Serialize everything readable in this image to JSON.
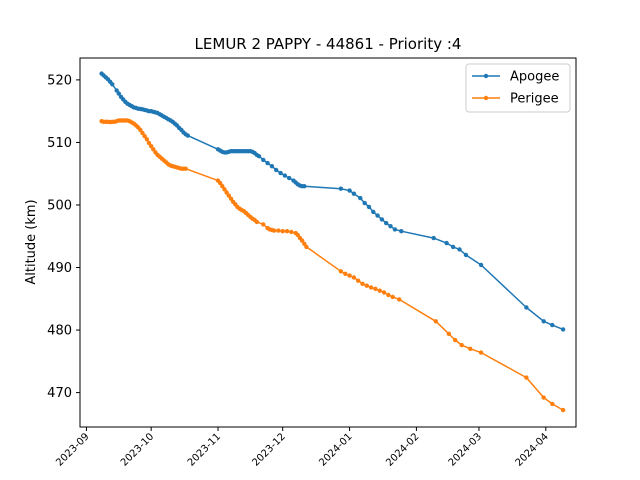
{
  "chart_data": {
    "type": "line",
    "title": "LEMUR 2 PAPPY - 44861 - Priority :4",
    "xlabel": "",
    "ylabel": "Altitude (km)",
    "x_tick_labels": [
      "2023-09",
      "2023-10",
      "2023-11",
      "2023-12",
      "2024-01",
      "2024-02",
      "2024-03",
      "2024-04"
    ],
    "x_ticks": [
      "2023-09-01",
      "2023-10-01",
      "2023-11-01",
      "2023-12-01",
      "2024-01-01",
      "2024-02-01",
      "2024-03-01",
      "2024-04-01"
    ],
    "xlim": [
      "2023-08-29",
      "2024-04-15"
    ],
    "y_ticks": [
      470,
      480,
      490,
      500,
      510,
      520
    ],
    "ylim": [
      464.5,
      523.5
    ],
    "grid": false,
    "legend_position": "top-right",
    "series": [
      {
        "name": "Apogee",
        "color": "#1f77b4",
        "points": [
          [
            "2023-09-08",
            521.0
          ],
          [
            "2023-09-09",
            520.7
          ],
          [
            "2023-09-10",
            520.4
          ],
          [
            "2023-09-11",
            520.1
          ],
          [
            "2023-09-12",
            519.7
          ],
          [
            "2023-09-13",
            519.3
          ],
          [
            "2023-09-15",
            518.3
          ],
          [
            "2023-09-16",
            517.8
          ],
          [
            "2023-09-17",
            517.3
          ],
          [
            "2023-09-18",
            516.9
          ],
          [
            "2023-09-19",
            516.5
          ],
          [
            "2023-09-20",
            516.2
          ],
          [
            "2023-09-21",
            516.0
          ],
          [
            "2023-09-22",
            515.8
          ],
          [
            "2023-09-23",
            515.6
          ],
          [
            "2023-09-24",
            515.5
          ],
          [
            "2023-09-25",
            515.4
          ],
          [
            "2023-09-26",
            515.35
          ],
          [
            "2023-09-27",
            515.3
          ],
          [
            "2023-09-28",
            515.2
          ],
          [
            "2023-09-29",
            515.1
          ],
          [
            "2023-09-30",
            515.0
          ],
          [
            "2023-10-01",
            515.0
          ],
          [
            "2023-10-02",
            514.9
          ],
          [
            "2023-10-03",
            514.8
          ],
          [
            "2023-10-04",
            514.7
          ],
          [
            "2023-10-05",
            514.5
          ],
          [
            "2023-10-06",
            514.3
          ],
          [
            "2023-10-07",
            514.1
          ],
          [
            "2023-10-08",
            513.9
          ],
          [
            "2023-10-09",
            513.7
          ],
          [
            "2023-10-10",
            513.5
          ],
          [
            "2023-10-11",
            513.3
          ],
          [
            "2023-10-12",
            513.0
          ],
          [
            "2023-10-13",
            512.7
          ],
          [
            "2023-10-14",
            512.3
          ],
          [
            "2023-10-15",
            512.0
          ],
          [
            "2023-10-16",
            511.6
          ],
          [
            "2023-10-17",
            511.3
          ],
          [
            "2023-10-18",
            511.1
          ],
          [
            "2023-11-01",
            508.9
          ],
          [
            "2023-11-02",
            508.7
          ],
          [
            "2023-11-03",
            508.5
          ],
          [
            "2023-11-04",
            508.4
          ],
          [
            "2023-11-05",
            508.4
          ],
          [
            "2023-11-06",
            508.5
          ],
          [
            "2023-11-07",
            508.6
          ],
          [
            "2023-11-08",
            508.6
          ],
          [
            "2023-11-09",
            508.6
          ],
          [
            "2023-11-10",
            508.6
          ],
          [
            "2023-11-11",
            508.6
          ],
          [
            "2023-11-12",
            508.6
          ],
          [
            "2023-11-13",
            508.6
          ],
          [
            "2023-11-14",
            508.6
          ],
          [
            "2023-11-15",
            508.6
          ],
          [
            "2023-11-16",
            508.6
          ],
          [
            "2023-11-17",
            508.5
          ],
          [
            "2023-11-18",
            508.3
          ],
          [
            "2023-11-19",
            508.0
          ],
          [
            "2023-11-20",
            507.8
          ],
          [
            "2023-11-22",
            507.2
          ],
          [
            "2023-11-24",
            506.7
          ],
          [
            "2023-11-26",
            506.2
          ],
          [
            "2023-11-28",
            505.6
          ],
          [
            "2023-11-30",
            505.1
          ],
          [
            "2023-12-02",
            504.7
          ],
          [
            "2023-12-04",
            504.3
          ],
          [
            "2023-12-06",
            503.9
          ],
          [
            "2023-12-07",
            503.6
          ],
          [
            "2023-12-08",
            503.3
          ],
          [
            "2023-12-09",
            503.1
          ],
          [
            "2023-12-10",
            503.0
          ],
          [
            "2023-12-11",
            503.0
          ],
          [
            "2023-12-28",
            502.6
          ],
          [
            "2024-01-01",
            502.3
          ],
          [
            "2024-01-03",
            501.8
          ],
          [
            "2024-01-06",
            501.1
          ],
          [
            "2024-01-08",
            500.3
          ],
          [
            "2024-01-10",
            499.7
          ],
          [
            "2024-01-12",
            498.9
          ],
          [
            "2024-01-14",
            498.3
          ],
          [
            "2024-01-16",
            497.7
          ],
          [
            "2024-01-18",
            497.1
          ],
          [
            "2024-01-20",
            496.6
          ],
          [
            "2024-01-22",
            496.1
          ],
          [
            "2024-01-25",
            495.8
          ],
          [
            "2024-02-09",
            494.7
          ],
          [
            "2024-02-15",
            493.9
          ],
          [
            "2024-02-18",
            493.3
          ],
          [
            "2024-02-21",
            492.9
          ],
          [
            "2024-02-24",
            492.0
          ],
          [
            "2024-03-02",
            490.4
          ],
          [
            "2024-03-23",
            483.6
          ],
          [
            "2024-03-31",
            481.4
          ],
          [
            "2024-04-04",
            480.8
          ],
          [
            "2024-04-09",
            480.1
          ]
        ]
      },
      {
        "name": "Perigee",
        "color": "#ff7f0e",
        "points": [
          [
            "2023-09-08",
            513.4
          ],
          [
            "2023-09-09",
            513.3
          ],
          [
            "2023-09-10",
            513.3
          ],
          [
            "2023-09-11",
            513.3
          ],
          [
            "2023-09-12",
            513.25
          ],
          [
            "2023-09-13",
            513.3
          ],
          [
            "2023-09-14",
            513.3
          ],
          [
            "2023-09-15",
            513.4
          ],
          [
            "2023-09-16",
            513.5
          ],
          [
            "2023-09-17",
            513.5
          ],
          [
            "2023-09-18",
            513.5
          ],
          [
            "2023-09-19",
            513.5
          ],
          [
            "2023-09-20",
            513.5
          ],
          [
            "2023-09-21",
            513.4
          ],
          [
            "2023-09-22",
            513.2
          ],
          [
            "2023-09-23",
            513.0
          ],
          [
            "2023-09-24",
            512.7
          ],
          [
            "2023-09-25",
            512.4
          ],
          [
            "2023-09-26",
            512.0
          ],
          [
            "2023-09-27",
            511.5
          ],
          [
            "2023-09-28",
            511.0
          ],
          [
            "2023-09-29",
            510.5
          ],
          [
            "2023-09-30",
            509.9
          ],
          [
            "2023-10-01",
            509.4
          ],
          [
            "2023-10-02",
            508.9
          ],
          [
            "2023-10-03",
            508.4
          ],
          [
            "2023-10-04",
            508.0
          ],
          [
            "2023-10-05",
            507.7
          ],
          [
            "2023-10-06",
            507.4
          ],
          [
            "2023-10-07",
            507.1
          ],
          [
            "2023-10-08",
            506.8
          ],
          [
            "2023-10-09",
            506.5
          ],
          [
            "2023-10-10",
            506.3
          ],
          [
            "2023-10-11",
            506.2
          ],
          [
            "2023-10-12",
            506.1
          ],
          [
            "2023-10-13",
            506.0
          ],
          [
            "2023-10-14",
            505.9
          ],
          [
            "2023-10-15",
            505.8
          ],
          [
            "2023-10-16",
            505.8
          ],
          [
            "2023-10-17",
            505.8
          ],
          [
            "2023-11-01",
            503.9
          ],
          [
            "2023-11-02",
            503.5
          ],
          [
            "2023-11-03",
            503.0
          ],
          [
            "2023-11-04",
            502.5
          ],
          [
            "2023-11-05",
            502.0
          ],
          [
            "2023-11-06",
            501.5
          ],
          [
            "2023-11-07",
            501.0
          ],
          [
            "2023-11-08",
            500.5
          ],
          [
            "2023-11-09",
            500.1
          ],
          [
            "2023-11-10",
            499.7
          ],
          [
            "2023-11-11",
            499.4
          ],
          [
            "2023-11-12",
            499.2
          ],
          [
            "2023-11-13",
            499.0
          ],
          [
            "2023-11-14",
            498.7
          ],
          [
            "2023-11-15",
            498.4
          ],
          [
            "2023-11-16",
            498.1
          ],
          [
            "2023-11-17",
            497.8
          ],
          [
            "2023-11-18",
            497.6
          ],
          [
            "2023-11-19",
            497.3
          ],
          [
            "2023-11-22",
            496.9
          ],
          [
            "2023-11-24",
            496.3
          ],
          [
            "2023-11-25",
            496.1
          ],
          [
            "2023-11-26",
            496.0
          ],
          [
            "2023-11-27",
            495.9
          ],
          [
            "2023-11-29",
            495.9
          ],
          [
            "2023-12-01",
            495.8
          ],
          [
            "2023-12-03",
            495.8
          ],
          [
            "2023-12-05",
            495.7
          ],
          [
            "2023-12-07",
            495.5
          ],
          [
            "2023-12-08",
            495.2
          ],
          [
            "2023-12-09",
            494.7
          ],
          [
            "2023-12-10",
            494.3
          ],
          [
            "2023-12-11",
            493.8
          ],
          [
            "2023-12-12",
            493.3
          ],
          [
            "2023-12-28",
            489.4
          ],
          [
            "2023-12-30",
            489.0
          ],
          [
            "2024-01-01",
            488.7
          ],
          [
            "2024-01-03",
            488.4
          ],
          [
            "2024-01-05",
            487.9
          ],
          [
            "2024-01-07",
            487.4
          ],
          [
            "2024-01-09",
            487.1
          ],
          [
            "2024-01-11",
            486.8
          ],
          [
            "2024-01-13",
            486.6
          ],
          [
            "2024-01-15",
            486.3
          ],
          [
            "2024-01-17",
            486.0
          ],
          [
            "2024-01-19",
            485.6
          ],
          [
            "2024-01-21",
            485.3
          ],
          [
            "2024-01-24",
            484.9
          ],
          [
            "2024-02-10",
            481.4
          ],
          [
            "2024-02-16",
            479.4
          ],
          [
            "2024-02-19",
            478.4
          ],
          [
            "2024-02-22",
            477.6
          ],
          [
            "2024-02-26",
            477.0
          ],
          [
            "2024-03-02",
            476.4
          ],
          [
            "2024-03-23",
            472.4
          ],
          [
            "2024-03-31",
            469.2
          ],
          [
            "2024-04-04",
            468.2
          ],
          [
            "2024-04-09",
            467.2
          ]
        ]
      }
    ]
  }
}
